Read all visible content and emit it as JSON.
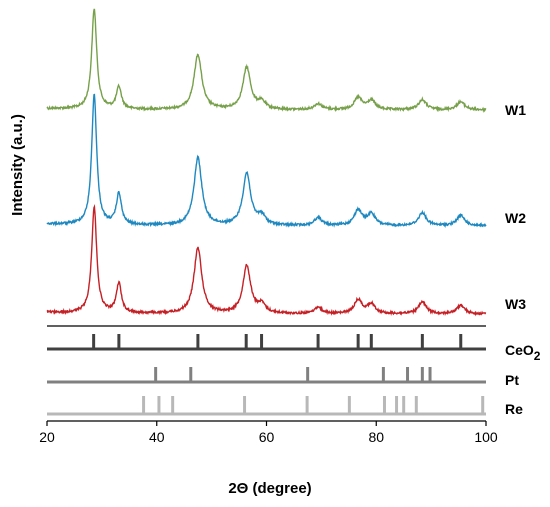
{
  "chart_data": {
    "type": "line",
    "title": "",
    "xlabel": "2Θ (degree)",
    "ylabel": "Intensity (a.u.)",
    "xlim": [
      20,
      100
    ],
    "xticks": [
      "20",
      "40",
      "60",
      "80",
      "100"
    ],
    "grid": false,
    "series": [
      {
        "name": "W1",
        "color": "#77a04a",
        "baseline": 0.0,
        "peaks": [
          {
            "x": 28.6,
            "h": 1.0
          },
          {
            "x": 33.1,
            "h": 0.22
          },
          {
            "x": 47.5,
            "h": 0.55
          },
          {
            "x": 56.4,
            "h": 0.42
          },
          {
            "x": 59.1,
            "h": 0.07
          },
          {
            "x": 69.4,
            "h": 0.06
          },
          {
            "x": 76.7,
            "h": 0.12
          },
          {
            "x": 79.1,
            "h": 0.09
          },
          {
            "x": 88.4,
            "h": 0.1
          },
          {
            "x": 95.4,
            "h": 0.08
          }
        ]
      },
      {
        "name": "W2",
        "color": "#1e88c0",
        "baseline": 0.0,
        "peaks": [
          {
            "x": 28.6,
            "h": 1.0
          },
          {
            "x": 33.1,
            "h": 0.24
          },
          {
            "x": 47.5,
            "h": 0.52
          },
          {
            "x": 56.4,
            "h": 0.4
          },
          {
            "x": 59.1,
            "h": 0.07
          },
          {
            "x": 69.4,
            "h": 0.06
          },
          {
            "x": 76.7,
            "h": 0.12
          },
          {
            "x": 79.1,
            "h": 0.09
          },
          {
            "x": 88.4,
            "h": 0.1
          },
          {
            "x": 95.4,
            "h": 0.08
          }
        ]
      },
      {
        "name": "W3",
        "color": "#c52025",
        "baseline": 0.0,
        "peaks": [
          {
            "x": 28.6,
            "h": 1.0
          },
          {
            "x": 33.1,
            "h": 0.28
          },
          {
            "x": 47.5,
            "h": 0.62
          },
          {
            "x": 56.4,
            "h": 0.45
          },
          {
            "x": 59.1,
            "h": 0.08
          },
          {
            "x": 69.4,
            "h": 0.06
          },
          {
            "x": 76.7,
            "h": 0.13
          },
          {
            "x": 79.1,
            "h": 0.09
          },
          {
            "x": 88.4,
            "h": 0.11
          },
          {
            "x": 95.4,
            "h": 0.08
          }
        ]
      }
    ],
    "references": [
      {
        "name": "CeO2",
        "label_main": "CeO",
        "label_sub": "2",
        "color": "#404040",
        "positions": [
          28.5,
          33.1,
          47.5,
          56.3,
          59.1,
          69.4,
          76.7,
          79.1,
          88.4,
          95.4
        ]
      },
      {
        "name": "Pt",
        "label_main": "Pt",
        "label_sub": "",
        "color": "#808080",
        "positions": [
          39.8,
          46.2,
          67.5,
          81.3,
          85.7,
          88.4,
          89.8
        ]
      },
      {
        "name": "Re",
        "label_main": "Re",
        "label_sub": "",
        "color": "#b8b8b8",
        "positions": [
          37.6,
          40.4,
          42.9,
          56.0,
          67.4,
          75.1,
          81.5,
          83.7,
          85.0,
          87.3,
          99.4
        ]
      }
    ]
  }
}
